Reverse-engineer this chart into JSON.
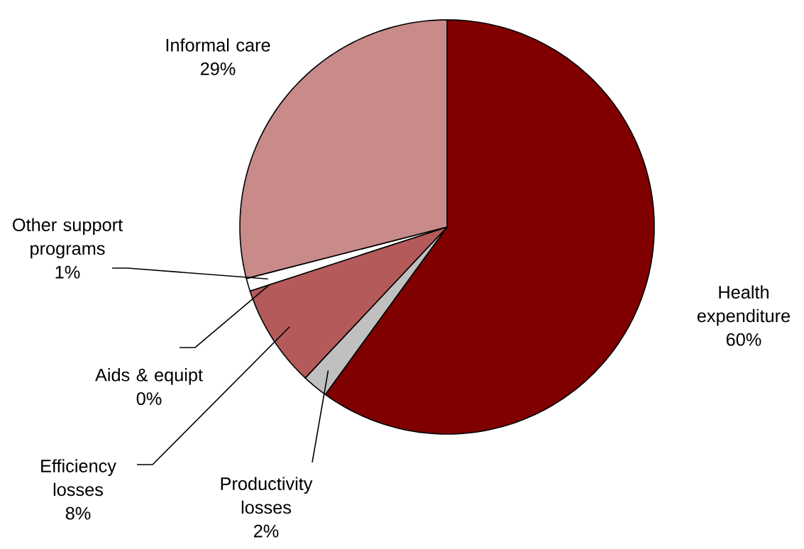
{
  "chart_data": {
    "type": "pie",
    "categories": [
      "Health expenditure",
      "Productivity losses",
      "Efficiency losses",
      "Aids & equipt",
      "Other support programs",
      "Informal care"
    ],
    "values": [
      60,
      2,
      8,
      0,
      1,
      29
    ],
    "value_labels": [
      "60%",
      "2%",
      "8%",
      "0%",
      "1%",
      "29%"
    ],
    "colors": [
      "#800000",
      "#c0c0c0",
      "#b45a5a",
      "#400000",
      "#ffffff",
      "#c98a8a"
    ]
  }
}
